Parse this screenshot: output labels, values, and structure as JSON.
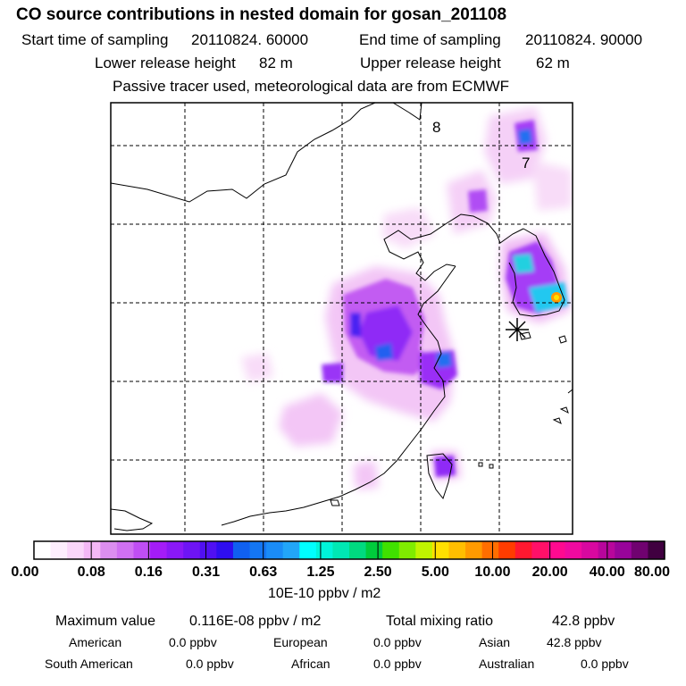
{
  "header": {
    "title": "CO  source contributions in nested domain for gosan_201108",
    "start_label": "Start time of sampling",
    "start_value": "20110824. 60000",
    "end_label": "End time of sampling",
    "end_value": "20110824. 90000",
    "lower_label": "Lower release height",
    "lower_value": "82 m",
    "upper_label": "Upper release height",
    "upper_value": "62 m",
    "tracer_note": "Passive tracer used, meteorological data are from ECMWF"
  },
  "map": {
    "labels": [
      "8",
      "7"
    ],
    "receptor": "gosan-receptor"
  },
  "colorbar": {
    "ticks": [
      "0.00",
      "0.08",
      "0.16",
      "0.31",
      "0.63",
      "1.25",
      "2.50",
      "5.00",
      "10.00",
      "20.00",
      "40.00",
      "80.00"
    ],
    "unit": "10E-10 ppbv / m2",
    "colors": [
      "#ffffff",
      "#fdeefd",
      "#fad6fa",
      "#f4b8f6",
      "#dc8ef0",
      "#d070f2",
      "#c04ef4",
      "#a41cf8",
      "#8a18f6",
      "#6e14f4",
      "#5010f2",
      "#2e0ef0",
      "#1060f0",
      "#1476f2",
      "#1a8cf6",
      "#22a6f8",
      "#00ffff",
      "#00f4da",
      "#00e8b4",
      "#00da80",
      "#00cc3c",
      "#40e000",
      "#80ec00",
      "#c0f400",
      "#ffe000",
      "#ffbe00",
      "#ff9a00",
      "#ff6e00",
      "#ff3c00",
      "#ff1830",
      "#ff1068",
      "#ff0a90",
      "#f00aa0",
      "#d808a0",
      "#b8069c",
      "#98049a",
      "#700270",
      "#400040"
    ]
  },
  "summary": {
    "max_label": "Maximum value",
    "max_value": "0.116E-08 ppbv / m2",
    "total_label": "Total mixing ratio",
    "total_value": "42.8 ppbv",
    "regions": [
      {
        "name": "American",
        "value": "0.0 ppbv"
      },
      {
        "name": "European",
        "value": "0.0 ppbv"
      },
      {
        "name": "Asian",
        "value": "42.8 ppbv"
      },
      {
        "name": "South American",
        "value": "0.0 ppbv"
      },
      {
        "name": "African",
        "value": "0.0 ppbv"
      },
      {
        "name": "Australian",
        "value": "0.0 ppbv"
      }
    ]
  }
}
